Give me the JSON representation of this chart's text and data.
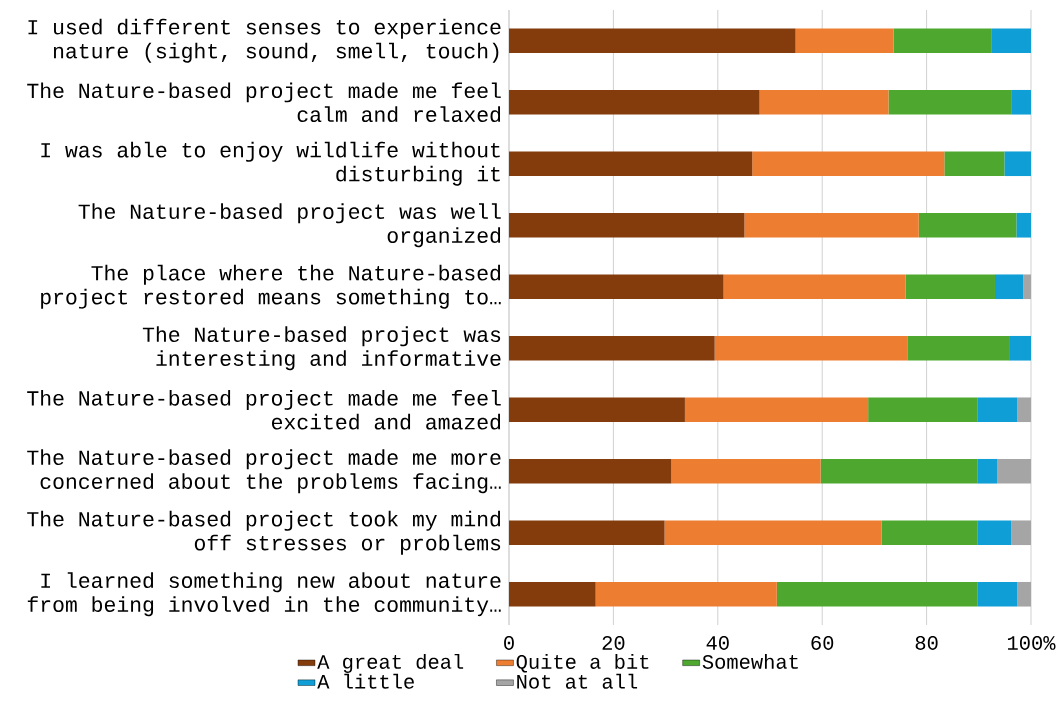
{
  "chart_data": {
    "type": "bar",
    "orientation": "horizontal",
    "stacked": true,
    "categories": [
      "I used different senses to experience nature (sight, sound, smell, touch)",
      "The Nature-based project made me feel calm and relaxed",
      "I was able to enjoy wildlife without disturbing it",
      "The Nature-based project was well organized",
      "The place where the Nature-based project restored means something to…",
      "The Nature-based project was interesting and informative",
      "The Nature-based project made me feel excited and amazed",
      "The Nature-based project made me more concerned about the problems facing…",
      "The Nature-based project took my mind off stresses or problems",
      "I learned something new about nature from being involved in the community…"
    ],
    "series": [
      {
        "name": "A great deal",
        "color": "#843c0c",
        "values": [
          54.9,
          48.0,
          46.6,
          45.1,
          41.1,
          39.4,
          33.7,
          31.1,
          29.8,
          16.6
        ]
      },
      {
        "name": "Quite a bit",
        "color": "#ed7d31",
        "values": [
          18.8,
          24.7,
          36.8,
          33.4,
          34.9,
          36.9,
          35.1,
          28.6,
          41.6,
          34.7
        ]
      },
      {
        "name": "Somewhat",
        "color": "#4ea72e",
        "values": [
          18.8,
          23.5,
          11.5,
          18.7,
          17.1,
          19.5,
          20.9,
          30.0,
          18.3,
          38.4
        ]
      },
      {
        "name": "A little",
        "color": "#0f9ed5",
        "values": [
          7.5,
          3.8,
          5.1,
          2.8,
          5.4,
          4.2,
          7.7,
          3.8,
          6.5,
          7.7
        ]
      },
      {
        "name": "Not at all",
        "color": "#a5a5a5",
        "values": [
          0,
          0,
          0,
          0,
          1.5,
          0,
          2.6,
          6.5,
          3.8,
          2.6
        ]
      }
    ],
    "xlim": [
      0,
      100
    ],
    "xticks": [
      0,
      20,
      40,
      60,
      80,
      {
        "value": 100,
        "label": "100%"
      }
    ],
    "grid": "x",
    "legend": "bottom"
  }
}
